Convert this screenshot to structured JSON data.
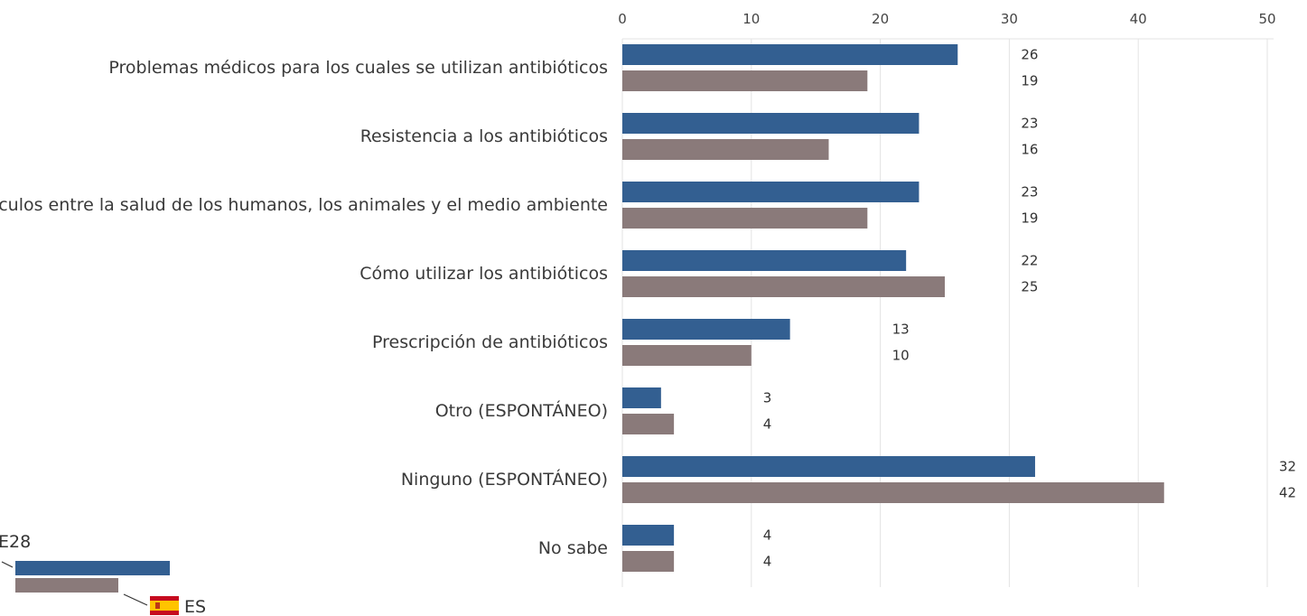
{
  "chart_data": {
    "type": "bar",
    "orientation": "horizontal",
    "categories": [
      "Problemas médicos para los cuales se utilizan antibióticos",
      "Resistencia a los antibióticos",
      "Vínculos entre la salud de los humanos, los animales y el medio ambiente",
      "Cómo utilizar los antibióticos",
      "Prescripción de antibióticos",
      "Otro (ESPONTÁNEO)",
      "Ninguno (ESPONTÁNEO)",
      "No sabe"
    ],
    "series": [
      {
        "name": "E28",
        "color": "#335f91",
        "values": [
          26,
          23,
          23,
          22,
          13,
          3,
          32,
          4
        ]
      },
      {
        "name": "ES",
        "color": "#8a7a7a",
        "values": [
          19,
          16,
          19,
          25,
          10,
          4,
          42,
          4
        ]
      }
    ],
    "xlim": [
      0,
      50
    ],
    "xticks": [
      0,
      10,
      20,
      30,
      40,
      50
    ],
    "grid": true,
    "legend_position": "bottom-left"
  }
}
